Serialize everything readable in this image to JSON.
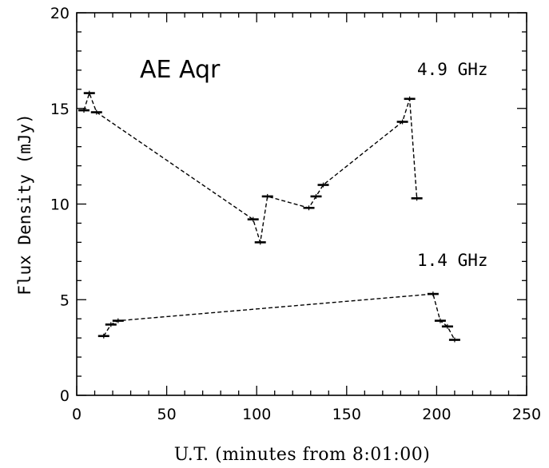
{
  "chart_data": {
    "type": "line",
    "title": "",
    "xlabel": "U.T. (minutes from 8:01:00)",
    "ylabel": "Flux Density (mJy)",
    "xlim": [
      0,
      250
    ],
    "ylim": [
      0,
      20
    ],
    "xticks": [
      0,
      50,
      100,
      150,
      200,
      250
    ],
    "yticks": [
      0,
      5,
      10,
      15,
      20
    ],
    "grid": false,
    "annotations": {
      "source": "AE Aqr",
      "label_49": "4.9 GHz",
      "label_14": "1.4 GHz"
    },
    "series": [
      {
        "label": "4.9 GHz",
        "x": [
          4,
          7,
          11,
          98,
          102,
          106,
          129,
          133,
          137,
          181,
          185,
          189
        ],
        "y": [
          14.9,
          15.8,
          14.8,
          9.2,
          8.0,
          10.4,
          9.8,
          10.4,
          11.0,
          14.3,
          15.5,
          10.3
        ]
      },
      {
        "label": "1.4 GHz",
        "x": [
          15,
          19,
          23,
          198,
          202,
          206,
          210
        ],
        "y": [
          3.1,
          3.7,
          3.9,
          5.3,
          3.9,
          3.6,
          2.9
        ]
      }
    ]
  }
}
